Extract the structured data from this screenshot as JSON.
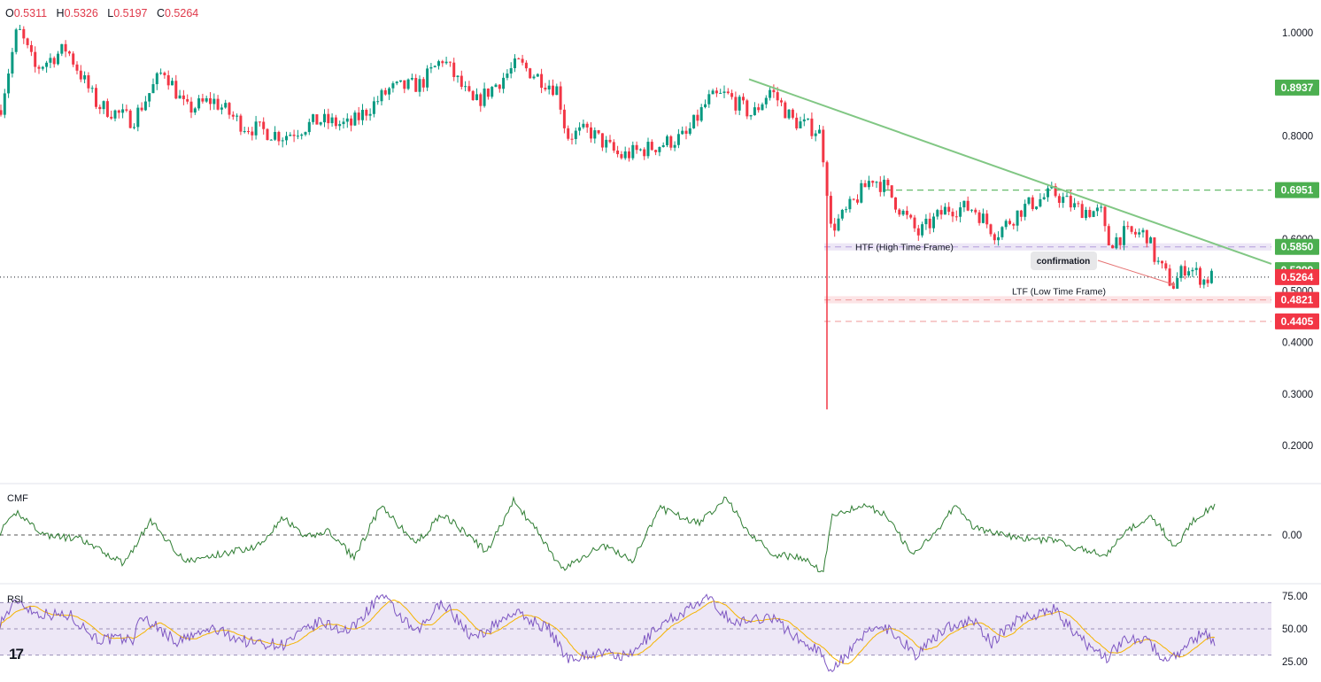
{
  "legend": {
    "open_key": "O",
    "open": "0.5311",
    "high_key": "H",
    "high": "0.5326",
    "low_key": "L",
    "low": "0.5197",
    "close_key": "C",
    "close": "0.5264"
  },
  "indicators": {
    "cmf_label": "CMF",
    "rsi_label": "RSI"
  },
  "logo_text": "17",
  "chart_data": [
    {
      "type": "candlestick",
      "title": "",
      "y_ticks": [
        "1.0000",
        "0.8000",
        "0.6000",
        "0.5000",
        "0.4000",
        "0.3000",
        "0.2000"
      ],
      "ylim": [
        0.14,
        1.06
      ],
      "grid": false,
      "price_anchors": [
        {
          "x": 0,
          "price": 0.85
        },
        {
          "x": 20,
          "price": 1.01
        },
        {
          "x": 40,
          "price": 0.93
        },
        {
          "x": 75,
          "price": 0.97
        },
        {
          "x": 110,
          "price": 0.86
        },
        {
          "x": 150,
          "price": 0.83
        },
        {
          "x": 185,
          "price": 0.93
        },
        {
          "x": 210,
          "price": 0.85
        },
        {
          "x": 240,
          "price": 0.87
        },
        {
          "x": 275,
          "price": 0.82
        },
        {
          "x": 320,
          "price": 0.8
        },
        {
          "x": 360,
          "price": 0.83
        },
        {
          "x": 395,
          "price": 0.82
        },
        {
          "x": 440,
          "price": 0.89
        },
        {
          "x": 475,
          "price": 0.9
        },
        {
          "x": 500,
          "price": 0.95
        },
        {
          "x": 535,
          "price": 0.86
        },
        {
          "x": 585,
          "price": 0.94
        },
        {
          "x": 630,
          "price": 0.89
        },
        {
          "x": 640,
          "price": 0.8
        },
        {
          "x": 665,
          "price": 0.81
        },
        {
          "x": 700,
          "price": 0.76
        },
        {
          "x": 740,
          "price": 0.78
        },
        {
          "x": 775,
          "price": 0.8
        },
        {
          "x": 800,
          "price": 0.87
        },
        {
          "x": 820,
          "price": 0.88
        },
        {
          "x": 850,
          "price": 0.84
        },
        {
          "x": 870,
          "price": 0.89
        },
        {
          "x": 895,
          "price": 0.83
        },
        {
          "x": 925,
          "price": 0.81
        },
        {
          "x": 932,
          "price": 0.74
        },
        {
          "x": 938,
          "price": 0.62
        },
        {
          "x": 955,
          "price": 0.65
        },
        {
          "x": 985,
          "price": 0.72
        },
        {
          "x": 1000,
          "price": 0.7
        },
        {
          "x": 1020,
          "price": 0.65
        },
        {
          "x": 1037,
          "price": 0.61
        },
        {
          "x": 1070,
          "price": 0.66
        },
        {
          "x": 1100,
          "price": 0.66
        },
        {
          "x": 1125,
          "price": 0.61
        },
        {
          "x": 1155,
          "price": 0.66
        },
        {
          "x": 1190,
          "price": 0.69
        },
        {
          "x": 1215,
          "price": 0.66
        },
        {
          "x": 1245,
          "price": 0.65
        },
        {
          "x": 1250,
          "price": 0.59
        },
        {
          "x": 1270,
          "price": 0.61
        },
        {
          "x": 1295,
          "price": 0.61
        },
        {
          "x": 1305,
          "price": 0.56
        },
        {
          "x": 1325,
          "price": 0.51
        },
        {
          "x": 1340,
          "price": 0.55
        },
        {
          "x": 1360,
          "price": 0.52
        },
        {
          "x": 1372,
          "price": 0.53
        }
      ],
      "last_price": 0.5264,
      "wick_low": {
        "x": 934,
        "price": 0.27
      },
      "trendline": {
        "start_price": 0.91,
        "end_price": 0.552
      },
      "levels": [
        {
          "label": "0.8937",
          "price": 0.8937,
          "color": "#4caf50",
          "line": "none"
        },
        {
          "label": "0.6951",
          "price": 0.6951,
          "color": "#4caf50",
          "line": "dashed-green"
        },
        {
          "label": "0.5850",
          "price": 0.585,
          "color": "#4caf50",
          "line": "zone-purple"
        },
        {
          "label": "0.5399",
          "price": 0.5399,
          "color": "#4caf50",
          "line": "none"
        },
        {
          "label": "0.5264",
          "price": 0.5264,
          "color": "#f23645",
          "line": "dotted-black"
        },
        {
          "label": "0.4821",
          "price": 0.4821,
          "color": "#f23645",
          "line": "zone-red"
        },
        {
          "label": "0.4405",
          "price": 0.4405,
          "color": "#f23645",
          "line": "dashed-red"
        }
      ],
      "annotations": {
        "htf": "HTF (High Time Frame)",
        "ltf": "LTF (Low Time Frame)",
        "confirmation": "confirmation"
      }
    },
    {
      "type": "line",
      "name": "CMF",
      "y_ticks": [
        "0.00"
      ],
      "ylim": [
        -0.35,
        0.35
      ],
      "color": "#2e7d32",
      "values_anchors": [
        {
          "x": 0,
          "v": 0.02
        },
        {
          "x": 20,
          "v": 0.16
        },
        {
          "x": 50,
          "v": 0.0
        },
        {
          "x": 90,
          "v": -0.03
        },
        {
          "x": 140,
          "v": -0.2
        },
        {
          "x": 170,
          "v": 0.1
        },
        {
          "x": 210,
          "v": -0.19
        },
        {
          "x": 260,
          "v": -0.12
        },
        {
          "x": 290,
          "v": -0.08
        },
        {
          "x": 320,
          "v": 0.12
        },
        {
          "x": 345,
          "v": -0.02
        },
        {
          "x": 370,
          "v": 0.03
        },
        {
          "x": 400,
          "v": -0.16
        },
        {
          "x": 430,
          "v": 0.2
        },
        {
          "x": 470,
          "v": -0.06
        },
        {
          "x": 500,
          "v": 0.15
        },
        {
          "x": 550,
          "v": -0.12
        },
        {
          "x": 580,
          "v": 0.24
        },
        {
          "x": 610,
          "v": 0.0
        },
        {
          "x": 635,
          "v": -0.25
        },
        {
          "x": 680,
          "v": -0.07
        },
        {
          "x": 715,
          "v": -0.18
        },
        {
          "x": 745,
          "v": 0.19
        },
        {
          "x": 790,
          "v": 0.08
        },
        {
          "x": 820,
          "v": 0.27
        },
        {
          "x": 845,
          "v": 0.02
        },
        {
          "x": 875,
          "v": -0.14
        },
        {
          "x": 905,
          "v": -0.16
        },
        {
          "x": 930,
          "v": -0.26
        },
        {
          "x": 940,
          "v": 0.14
        },
        {
          "x": 975,
          "v": 0.21
        },
        {
          "x": 1000,
          "v": 0.15
        },
        {
          "x": 1030,
          "v": -0.14
        },
        {
          "x": 1060,
          "v": 0.05
        },
        {
          "x": 1080,
          "v": 0.22
        },
        {
          "x": 1100,
          "v": 0.05
        },
        {
          "x": 1145,
          "v": -0.02
        },
        {
          "x": 1190,
          "v": -0.04
        },
        {
          "x": 1220,
          "v": -0.1
        },
        {
          "x": 1250,
          "v": -0.14
        },
        {
          "x": 1275,
          "v": 0.04
        },
        {
          "x": 1300,
          "v": 0.13
        },
        {
          "x": 1315,
          "v": 0.02
        },
        {
          "x": 1328,
          "v": -0.1
        },
        {
          "x": 1345,
          "v": 0.09
        },
        {
          "x": 1372,
          "v": 0.21
        }
      ]
    },
    {
      "type": "line",
      "name": "RSI",
      "y_ticks": [
        "75.00",
        "50.00",
        "25.00"
      ],
      "ylim": [
        14,
        86
      ],
      "bands": [
        70,
        50,
        30
      ],
      "colors": {
        "rsi": "#7e57c2",
        "ma": "#f5b400",
        "band": "#ede7f6"
      },
      "values_anchors": [
        {
          "x": 0,
          "v": 55
        },
        {
          "x": 20,
          "v": 72
        },
        {
          "x": 40,
          "v": 62
        },
        {
          "x": 80,
          "v": 60
        },
        {
          "x": 110,
          "v": 42
        },
        {
          "x": 150,
          "v": 42
        },
        {
          "x": 160,
          "v": 60
        },
        {
          "x": 200,
          "v": 40
        },
        {
          "x": 240,
          "v": 50
        },
        {
          "x": 280,
          "v": 40
        },
        {
          "x": 320,
          "v": 38
        },
        {
          "x": 360,
          "v": 55
        },
        {
          "x": 395,
          "v": 48
        },
        {
          "x": 430,
          "v": 76
        },
        {
          "x": 470,
          "v": 46
        },
        {
          "x": 500,
          "v": 71
        },
        {
          "x": 535,
          "v": 42
        },
        {
          "x": 580,
          "v": 63
        },
        {
          "x": 620,
          "v": 50
        },
        {
          "x": 640,
          "v": 28
        },
        {
          "x": 680,
          "v": 32
        },
        {
          "x": 710,
          "v": 28
        },
        {
          "x": 745,
          "v": 53
        },
        {
          "x": 800,
          "v": 73
        },
        {
          "x": 830,
          "v": 54
        },
        {
          "x": 870,
          "v": 60
        },
        {
          "x": 905,
          "v": 40
        },
        {
          "x": 925,
          "v": 34
        },
        {
          "x": 935,
          "v": 19
        },
        {
          "x": 960,
          "v": 32
        },
        {
          "x": 985,
          "v": 52
        },
        {
          "x": 1005,
          "v": 50
        },
        {
          "x": 1035,
          "v": 30
        },
        {
          "x": 1070,
          "v": 52
        },
        {
          "x": 1100,
          "v": 56
        },
        {
          "x": 1120,
          "v": 39
        },
        {
          "x": 1150,
          "v": 58
        },
        {
          "x": 1190,
          "v": 65
        },
        {
          "x": 1220,
          "v": 42
        },
        {
          "x": 1250,
          "v": 28
        },
        {
          "x": 1270,
          "v": 42
        },
        {
          "x": 1295,
          "v": 44
        },
        {
          "x": 1310,
          "v": 28
        },
        {
          "x": 1328,
          "v": 30
        },
        {
          "x": 1345,
          "v": 40
        },
        {
          "x": 1360,
          "v": 48
        },
        {
          "x": 1372,
          "v": 40
        }
      ]
    }
  ]
}
